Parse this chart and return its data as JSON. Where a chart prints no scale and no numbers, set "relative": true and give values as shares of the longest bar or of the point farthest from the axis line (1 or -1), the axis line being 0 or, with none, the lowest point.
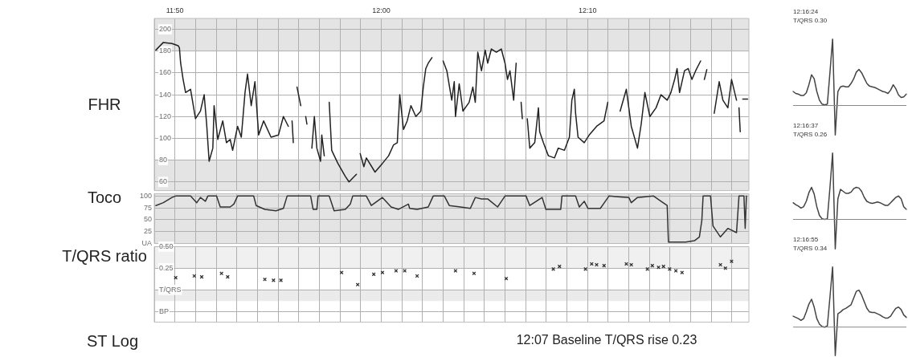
{
  "chart_data": [
    {
      "type": "line",
      "ylabel": "FHR",
      "color": "#222222",
      "marker": "none",
      "line_style": "solid",
      "grid": true,
      "xlim": [
        11.8167,
        12.297
      ],
      "ylim": [
        52,
        210
      ],
      "xticks": [
        {
          "value": 11.8167,
          "label": null
        },
        {
          "value": 11.8333,
          "label": "11:50"
        },
        {
          "value": 11.85,
          "label": null
        },
        {
          "value": 11.8667,
          "label": null
        },
        {
          "value": 11.8833,
          "label": null
        },
        {
          "value": 11.9,
          "label": null
        },
        {
          "value": 11.9167,
          "label": null
        },
        {
          "value": 11.9333,
          "label": null
        },
        {
          "value": 11.95,
          "label": null
        },
        {
          "value": 11.9667,
          "label": null
        },
        {
          "value": 11.9833,
          "label": null
        },
        {
          "value": 12,
          "label": "12:00"
        },
        {
          "value": 12.0167,
          "label": null
        },
        {
          "value": 12.0333,
          "label": null
        },
        {
          "value": 12.05,
          "label": null
        },
        {
          "value": 12.0667,
          "label": null
        },
        {
          "value": 12.0833,
          "label": null
        },
        {
          "value": 12.1,
          "label": null
        },
        {
          "value": 12.1167,
          "label": null
        },
        {
          "value": 12.1333,
          "label": null
        },
        {
          "value": 12.15,
          "label": null
        },
        {
          "value": 12.1667,
          "label": "12:10"
        },
        {
          "value": 12.1833,
          "label": null
        },
        {
          "value": 12.2,
          "label": null
        },
        {
          "value": 12.2167,
          "label": null
        },
        {
          "value": 12.2333,
          "label": null
        },
        {
          "value": 12.25,
          "label": null
        },
        {
          "value": 12.2667,
          "label": null
        },
        {
          "value": 12.2833,
          "label": null
        }
      ],
      "yticks": [
        60,
        80,
        100,
        120,
        140,
        160,
        180,
        200
      ],
      "bands": [
        {
          "axis": "y",
          "from": 180,
          "to": 210,
          "color": "#e4e4e4"
        },
        {
          "axis": "y",
          "from": 52,
          "to": 80,
          "color": "#e4e4e4"
        }
      ],
      "x": [
        11.818,
        11.824,
        11.831,
        11.836,
        11.837,
        11.838,
        11.84,
        11.842,
        11.846,
        11.85,
        11.854,
        11.857,
        11.859,
        11.861,
        11.864,
        11.865,
        11.868,
        11.872,
        11.875,
        11.878,
        11.88,
        11.884,
        11.887,
        11.89,
        11.892,
        11.895,
        11.898,
        11.901,
        11.905,
        11.911,
        11.917,
        11.921,
        11.925,
        11.927,
        11.928,
        11.929,
        11.931,
        11.932,
        11.935,
        11.937,
        11.939,
        11.94,
        11.942,
        11.944,
        11.946,
        11.948,
        11.951,
        11.952,
        11.954,
        11.956,
        11.958,
        11.96,
        11.965,
        11.971,
        11.974,
        11.98,
        11.981,
        11.983,
        11.986,
        11.988,
        11.995,
        12.001,
        12.006,
        12.01,
        12.013,
        12.015,
        12.018,
        12.021,
        12.024,
        12.028,
        12.032,
        12.034,
        12.036,
        12.038,
        12.041,
        12.046,
        12.05,
        12.053,
        12.057,
        12.059,
        12.06,
        12.063,
        12.066,
        12.071,
        12.074,
        12.076,
        12.078,
        12.081,
        12.084,
        12.086,
        12.089,
        12.093,
        12.097,
        12.1,
        12.102,
        12.104,
        12.107,
        12.109,
        12.111,
        12.113,
        12.114,
        12.116,
        12.118,
        12.12,
        12.124,
        12.127,
        12.128,
        12.131,
        12.135,
        12.14,
        12.143,
        12.148,
        12.152,
        12.154,
        12.156,
        12.157,
        12.159,
        12.164,
        12.168,
        12.174,
        12.18,
        12.183,
        12.19,
        12.193,
        12.198,
        12.202,
        12.207,
        12.21,
        12.213,
        12.217,
        12.222,
        12.226,
        12.231,
        12.234,
        12.237,
        12.239,
        12.241,
        12.245,
        12.248,
        12.251,
        12.254,
        12.258,
        12.259,
        12.261,
        12.263,
        12.266,
        12.269,
        12.273,
        12.276,
        12.28,
        12.283,
        12.287,
        12.288,
        12.289,
        12.29,
        12.291,
        12.292,
        12.296
      ],
      "values": [
        181,
        188,
        187,
        185,
        183,
        169,
        154,
        142,
        145,
        118,
        125,
        140,
        113,
        79,
        91,
        130,
        99,
        116,
        96,
        99,
        89,
        111,
        101,
        142,
        159,
        130,
        152,
        103,
        116,
        101,
        103,
        120,
        111,
        null,
        116,
        96,
        null,
        147,
        130,
        null,
        120,
        113,
        null,
        91,
        120,
        91,
        79,
        103,
        84,
        null,
        133,
        89,
        77,
        65,
        60,
        67,
        null,
        86,
        74,
        82,
        69,
        77,
        84,
        94,
        96,
        140,
        108,
        116,
        130,
        120,
        125,
        147,
        164,
        169,
        174,
        null,
        171,
        162,
        135,
        152,
        120,
        150,
        125,
        133,
        147,
        133,
        179,
        162,
        181,
        169,
        182,
        179,
        182,
        169,
        154,
        162,
        135,
        169,
        null,
        133,
        118,
        null,
        118,
        91,
        96,
        128,
        106,
        96,
        84,
        82,
        91,
        89,
        101,
        135,
        145,
        123,
        101,
        96,
        103,
        111,
        116,
        133,
        null,
        125,
        145,
        111,
        91,
        113,
        142,
        120,
        128,
        140,
        135,
        142,
        154,
        164,
        142,
        162,
        164,
        154,
        162,
        171,
        null,
        154,
        163,
        null,
        123,
        152,
        135,
        128,
        154,
        135,
        null,
        128,
        106,
        null,
        136,
        136
      ]
    },
    {
      "type": "line",
      "ylabel": "Toco",
      "color": "#333333",
      "marker": "none",
      "line_style": "solid",
      "grid": true,
      "tick_labels": "y",
      "xlim": [
        11.8167,
        12.297
      ],
      "ylim": [
        0,
        105
      ],
      "xticks": [
        {
          "value": 11.8167,
          "label": null
        },
        {
          "value": 11.8333,
          "label": null
        },
        {
          "value": 11.85,
          "label": null
        },
        {
          "value": 11.8667,
          "label": null
        },
        {
          "value": 11.8833,
          "label": null
        },
        {
          "value": 11.9,
          "label": null
        },
        {
          "value": 11.9167,
          "label": null
        },
        {
          "value": 11.9333,
          "label": null
        },
        {
          "value": 11.95,
          "label": null
        },
        {
          "value": 11.9667,
          "label": null
        },
        {
          "value": 11.9833,
          "label": null
        },
        {
          "value": 12,
          "label": null
        },
        {
          "value": 12.0167,
          "label": null
        },
        {
          "value": 12.0333,
          "label": null
        },
        {
          "value": 12.05,
          "label": null
        },
        {
          "value": 12.0667,
          "label": null
        },
        {
          "value": 12.0833,
          "label": null
        },
        {
          "value": 12.1,
          "label": null
        },
        {
          "value": 12.1167,
          "label": null
        },
        {
          "value": 12.1333,
          "label": null
        },
        {
          "value": 12.15,
          "label": null
        },
        {
          "value": 12.1667,
          "label": null
        },
        {
          "value": 12.1833,
          "label": null
        },
        {
          "value": 12.2,
          "label": null
        },
        {
          "value": 12.2167,
          "label": null
        },
        {
          "value": 12.2333,
          "label": null
        },
        {
          "value": 12.25,
          "label": null
        },
        {
          "value": 12.2667,
          "label": null
        },
        {
          "value": 12.2833,
          "label": null
        }
      ],
      "yticks": [
        {
          "value": 0,
          "label": "UA"
        },
        25,
        50,
        75,
        100
      ],
      "bands": [
        {
          "axis": "y",
          "from": 0,
          "to": 105,
          "color": "#e4e4e4"
        }
      ],
      "x": [
        11.818,
        11.824,
        11.831,
        11.834,
        11.846,
        11.851,
        11.854,
        11.858,
        11.86,
        11.867,
        11.87,
        11.878,
        11.881,
        11.884,
        11.897,
        11.899,
        11.906,
        11.915,
        11.921,
        11.924,
        11.943,
        11.945,
        11.948,
        11.949,
        11.958,
        11.962,
        11.971,
        11.975,
        11.977,
        11.988,
        11.992,
        12.001,
        12.008,
        12.014,
        12.022,
        12.023,
        12.029,
        12.038,
        12.042,
        12.051,
        12.055,
        12.064,
        12.072,
        12.076,
        12.081,
        12.086,
        12.094,
        12.1,
        12.117,
        12.12,
        12.13,
        12.133,
        12.145,
        12.146,
        12.157,
        12.16,
        12.164,
        12.167,
        12.177,
        12.184,
        12.2,
        12.202,
        12.207,
        12.22,
        12.226,
        12.231,
        12.232,
        12.246,
        12.253,
        12.257,
        12.259,
        12.26,
        12.266,
        12.268,
        12.274,
        12.28,
        12.287,
        12.289,
        12.293,
        12.294,
        12.295
      ],
      "values": [
        80,
        86,
        97,
        100,
        100,
        86,
        97,
        89,
        100,
        100,
        77,
        77,
        83,
        100,
        100,
        80,
        72,
        69,
        74,
        100,
        100,
        72,
        72,
        100,
        100,
        69,
        72,
        83,
        100,
        100,
        80,
        97,
        77,
        72,
        83,
        74,
        72,
        77,
        100,
        100,
        80,
        77,
        74,
        97,
        94,
        94,
        77,
        100,
        100,
        80,
        97,
        72,
        72,
        100,
        100,
        77,
        89,
        74,
        74,
        100,
        97,
        86,
        97,
        100,
        89,
        80,
        3,
        3,
        6,
        14,
        49,
        100,
        100,
        37,
        14,
        32,
        23,
        100,
        100,
        32,
        100
      ]
    },
    {
      "type": "scatter",
      "ylabel": "T/QRS ratio",
      "color": "#333333",
      "marker": "cross",
      "grid": true,
      "tick_labels": "y",
      "xlim": [
        11.8167,
        12.297
      ],
      "ylim": [
        -0.375,
        0.5
      ],
      "xticks": [
        {
          "value": 11.8167,
          "label": null
        },
        {
          "value": 11.8333,
          "label": null
        },
        {
          "value": 11.85,
          "label": null
        },
        {
          "value": 11.8667,
          "label": null
        },
        {
          "value": 11.8833,
          "label": null
        },
        {
          "value": 11.9,
          "label": null
        },
        {
          "value": 11.9167,
          "label": null
        },
        {
          "value": 11.9333,
          "label": null
        },
        {
          "value": 11.95,
          "label": null
        },
        {
          "value": 11.9667,
          "label": null
        },
        {
          "value": 11.9833,
          "label": null
        },
        {
          "value": 12,
          "label": null
        },
        {
          "value": 12.0167,
          "label": null
        },
        {
          "value": 12.0333,
          "label": null
        },
        {
          "value": 12.05,
          "label": null
        },
        {
          "value": 12.0667,
          "label": null
        },
        {
          "value": 12.0833,
          "label": null
        },
        {
          "value": 12.1,
          "label": null
        },
        {
          "value": 12.1167,
          "label": null
        },
        {
          "value": 12.1333,
          "label": null
        },
        {
          "value": 12.15,
          "label": null
        },
        {
          "value": 12.1667,
          "label": null
        },
        {
          "value": 12.1833,
          "label": null
        },
        {
          "value": 12.2,
          "label": null
        },
        {
          "value": 12.2167,
          "label": null
        },
        {
          "value": 12.2333,
          "label": null
        },
        {
          "value": 12.25,
          "label": null
        },
        {
          "value": 12.2667,
          "label": null
        },
        {
          "value": 12.2833,
          "label": null
        }
      ],
      "yticks": [
        {
          "value": -0.25,
          "label": "BP"
        },
        {
          "value": 0,
          "label": "T/QRS"
        },
        {
          "value": 0.25,
          "label": "0.25"
        },
        {
          "value": 0.5,
          "label": "0.50"
        }
      ],
      "bands": [
        {
          "axis": "y",
          "from": 0.25,
          "to": 0.5,
          "color": "#f0f0f0"
        },
        {
          "axis": "y",
          "from": -0.13,
          "to": 0,
          "color": "#ebebeb"
        }
      ],
      "annotations": [
        "ST Log",
        "12:07 Baseline T/QRS rise 0.23"
      ],
      "x": [
        11.834,
        11.849,
        11.855,
        11.871,
        11.876,
        11.906,
        11.913,
        11.919,
        11.968,
        11.981,
        11.994,
        12.001,
        12.012,
        12.019,
        12.029,
        12.06,
        12.075,
        12.101,
        12.139,
        12.144,
        12.165,
        12.17,
        12.174,
        12.18,
        12.198,
        12.202,
        12.215,
        12.219,
        12.224,
        12.228,
        12.233,
        12.238,
        12.243,
        12.274,
        12.278,
        12.283
      ],
      "values": [
        0.14,
        0.16,
        0.15,
        0.19,
        0.15,
        0.12,
        0.11,
        0.11,
        0.2,
        0.06,
        0.18,
        0.2,
        0.22,
        0.22,
        0.16,
        0.22,
        0.19,
        0.13,
        0.24,
        0.27,
        0.24,
        0.3,
        0.29,
        0.28,
        0.3,
        0.29,
        0.24,
        0.28,
        0.26,
        0.27,
        0.24,
        0.22,
        0.2,
        0.29,
        0.25,
        0.33
      ]
    },
    {
      "type": "line",
      "relative": true,
      "title": "12:16:24",
      "subtitle": "T/QRS 0.30",
      "color": "#444444",
      "marker": "none",
      "categories": [
        null,
        null,
        null,
        null,
        null,
        null,
        null,
        null,
        null,
        null,
        null,
        null,
        null,
        null,
        null,
        null,
        null,
        null,
        null,
        null,
        null,
        null,
        null,
        null,
        null,
        null,
        null,
        null,
        null,
        null,
        null,
        null,
        null,
        null,
        null,
        null,
        null,
        null,
        null,
        null,
        null,
        null,
        null,
        null
      ],
      "values": [
        0.21,
        0.18,
        0.17,
        0.15,
        0.15,
        0.19,
        0.31,
        0.46,
        0.4,
        0.21,
        0.08,
        0.02,
        0.01,
        0.02,
        0.5,
        1,
        -0.44,
        0.21,
        0.28,
        0.29,
        0.28,
        0.28,
        0.33,
        0.4,
        0.5,
        0.54,
        0.49,
        0.41,
        0.33,
        0.29,
        0.28,
        0.27,
        0.25,
        0.23,
        0.21,
        0.2,
        0.18,
        0.23,
        0.31,
        0.25,
        0.16,
        0.12,
        0.13,
        0.17
      ]
    },
    {
      "type": "line",
      "relative": true,
      "title": "12:16:37",
      "subtitle": "T/QRS 0.26",
      "color": "#444444",
      "marker": "none",
      "categories": [
        null,
        null,
        null,
        null,
        null,
        null,
        null,
        null,
        null,
        null,
        null,
        null,
        null,
        null,
        null,
        null,
        null,
        null,
        null,
        null,
        null,
        null,
        null,
        null,
        null,
        null,
        null,
        null,
        null,
        null,
        null,
        null,
        null,
        null,
        null,
        null,
        null,
        null,
        null,
        null,
        null,
        null,
        null,
        null
      ],
      "values": [
        0.25,
        0.22,
        0.2,
        0.17,
        0.19,
        0.27,
        0.4,
        0.48,
        0.38,
        0.19,
        0.06,
        0.01,
        0,
        0.01,
        0.48,
        1,
        -0.44,
        0.31,
        0.45,
        0.42,
        0.39,
        0.39,
        0.41,
        0.46,
        0.48,
        0.47,
        0.42,
        0.33,
        0.27,
        0.25,
        0.24,
        0.25,
        0.26,
        0.25,
        0.23,
        0.21,
        0.21,
        0.25,
        0.29,
        0.33,
        0.35,
        0.31,
        0.19,
        0.15
      ]
    },
    {
      "type": "line",
      "relative": true,
      "title": "12:16:55",
      "subtitle": "T/QRS 0.34",
      "color": "#444444",
      "marker": "none",
      "categories": [
        null,
        null,
        null,
        null,
        null,
        null,
        null,
        null,
        null,
        null,
        null,
        null,
        null,
        null,
        null,
        null,
        null,
        null,
        null,
        null,
        null,
        null,
        null,
        null,
        null,
        null,
        null,
        null,
        null,
        null,
        null,
        null,
        null,
        null,
        null,
        null,
        null,
        null,
        null,
        null,
        null,
        null,
        null,
        null
      ],
      "values": [
        0.18,
        0.16,
        0.14,
        0.11,
        0.14,
        0.25,
        0.38,
        0.46,
        0.33,
        0.14,
        0.05,
        0.01,
        0,
        0.02,
        0.5,
        1,
        -0.47,
        0.22,
        0.25,
        0.29,
        0.31,
        0.34,
        0.37,
        0.48,
        0.59,
        0.61,
        0.53,
        0.42,
        0.31,
        0.25,
        0.24,
        0.24,
        0.22,
        0.2,
        0.17,
        0.15,
        0.15,
        0.18,
        0.25,
        0.31,
        0.33,
        0.29,
        0.2,
        0.16
      ]
    }
  ]
}
